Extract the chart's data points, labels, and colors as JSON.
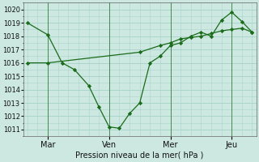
{
  "xlabel": "Pression niveau de la mer( hPa )",
  "bg_color": "#cce8e0",
  "grid_color": "#aad4cc",
  "line_color": "#1a6b1a",
  "marker_color": "#1a6b1a",
  "ylim": [
    1010.5,
    1020.5
  ],
  "yticks": [
    1011,
    1012,
    1013,
    1014,
    1015,
    1016,
    1017,
    1018,
    1019,
    1020
  ],
  "day_labels": [
    "Mar",
    "Ven",
    "Mer",
    "Jeu"
  ],
  "day_positions": [
    1.0,
    4.0,
    7.0,
    10.0
  ],
  "vline_positions": [
    1.0,
    4.0,
    7.0,
    10.0
  ],
  "series1_x": [
    0.0,
    1.0,
    1.7,
    2.3,
    3.0,
    3.5,
    4.0,
    4.5,
    5.0,
    5.5,
    6.0,
    6.5,
    7.0,
    7.5,
    8.0,
    8.5,
    9.0,
    9.5,
    10.0,
    10.5,
    11.0
  ],
  "series1_y": [
    1019.0,
    1018.1,
    1016.0,
    1015.5,
    1014.3,
    1012.7,
    1011.2,
    1011.1,
    1012.2,
    1013.0,
    1016.0,
    1016.5,
    1017.3,
    1017.5,
    1018.0,
    1018.3,
    1018.0,
    1019.2,
    1019.8,
    1019.1,
    1018.3
  ],
  "series2_x": [
    0.0,
    1.0,
    5.5,
    6.5,
    7.0,
    7.5,
    8.0,
    8.5,
    9.0,
    9.5,
    10.0,
    10.5,
    11.0
  ],
  "series2_y": [
    1016.0,
    1016.0,
    1016.8,
    1017.3,
    1017.5,
    1017.8,
    1017.9,
    1018.0,
    1018.2,
    1018.4,
    1018.5,
    1018.6,
    1018.3
  ],
  "xlim": [
    -0.2,
    11.2
  ],
  "minor_y_step": 0.5,
  "minor_x_step": 0.5,
  "xlabel_fontsize": 7,
  "ytick_fontsize": 6,
  "xtick_fontsize": 7
}
